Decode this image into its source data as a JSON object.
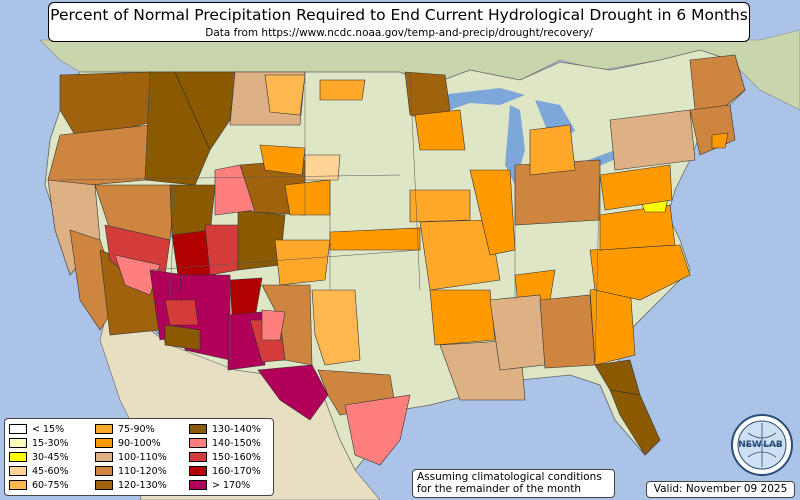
{
  "header": {
    "title": "Percent of Normal Precipitation Required to End Current Hydrological Drought in 6 Months",
    "subtitle": "Data from https://www.ncdc.noaa.gov/temp-and-precip/drought/recovery/"
  },
  "legend": {
    "items": [
      {
        "label": "< 15%",
        "color": "#ffffff"
      },
      {
        "label": "15-30%",
        "color": "#ffffc0"
      },
      {
        "label": "30-45%",
        "color": "#ffff00"
      },
      {
        "label": "45-60%",
        "color": "#ffd597"
      },
      {
        "label": "60-75%",
        "color": "#ffb850"
      },
      {
        "label": "75-90%",
        "color": "#ffa829"
      },
      {
        "label": "90-100%",
        "color": "#ff9a00"
      },
      {
        "label": "100-110%",
        "color": "#deb184"
      },
      {
        "label": "110-120%",
        "color": "#cd853f"
      },
      {
        "label": "120-130%",
        "color": "#a0620c"
      },
      {
        "label": "130-140%",
        "color": "#8b5a00"
      },
      {
        "label": "140-150%",
        "color": "#ff7f7f"
      },
      {
        "label": "150-160%",
        "color": "#d43c3c"
      },
      {
        "label": "160-170%",
        "color": "#b00000"
      },
      {
        "label": "> 170%",
        "color": "#b0005a"
      }
    ]
  },
  "note": {
    "line1": "Assuming climatological conditions",
    "line2": "for the remainder of the month"
  },
  "valid": "Valid: November 09 2025",
  "logo": {
    "text_left": "NEW",
    "text_right": "LAB"
  },
  "colors": {
    "ocean": "#aac3e6",
    "land": "#d9e3c0",
    "land_dark": "#b9c99a",
    "mexico": "#e6dfc3",
    "lake": "#7da7d9"
  }
}
